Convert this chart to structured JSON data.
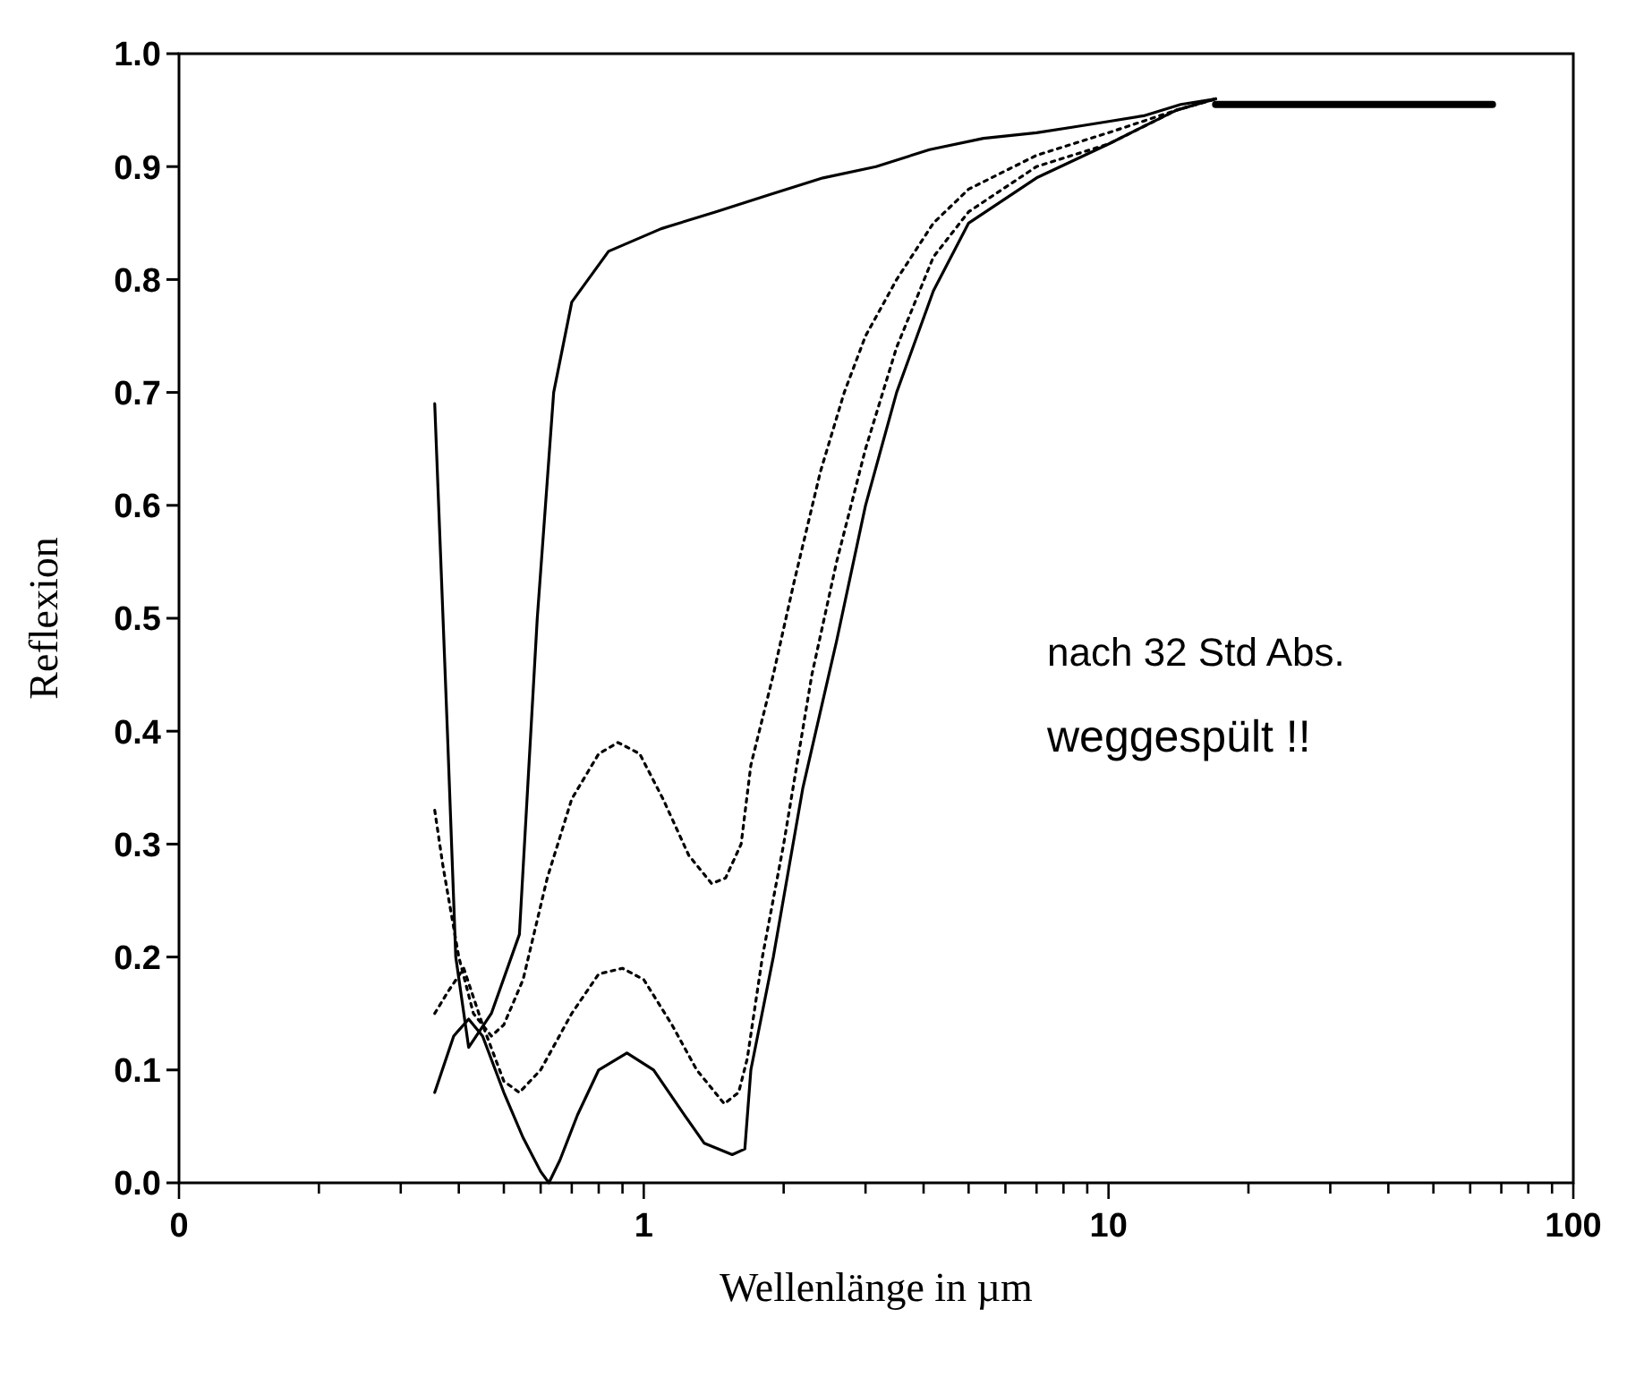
{
  "chart_data": {
    "type": "line",
    "xlabel": "Wellenlänge in µm",
    "ylabel": "Reflexion",
    "log": "x",
    "grid": false,
    "xlim": [
      0.1,
      100
    ],
    "xticks": [
      {
        "value": 0.1,
        "label": "0"
      },
      {
        "value": 0.2,
        "label": null
      },
      {
        "value": 0.3,
        "label": null
      },
      {
        "value": 0.4,
        "label": null
      },
      {
        "value": 0.5,
        "label": null
      },
      {
        "value": 0.6,
        "label": null
      },
      {
        "value": 0.7,
        "label": null
      },
      {
        "value": 0.8,
        "label": null
      },
      {
        "value": 0.9,
        "label": null
      },
      1,
      {
        "value": 2,
        "label": null
      },
      {
        "value": 3,
        "label": null
      },
      {
        "value": 4,
        "label": null
      },
      {
        "value": 5,
        "label": null
      },
      {
        "value": 6,
        "label": null
      },
      {
        "value": 7,
        "label": null
      },
      {
        "value": 8,
        "label": null
      },
      {
        "value": 9,
        "label": null
      },
      10,
      {
        "value": 20,
        "label": null
      },
      {
        "value": 30,
        "label": null
      },
      {
        "value": 40,
        "label": null
      },
      {
        "value": 50,
        "label": null
      },
      {
        "value": 60,
        "label": null
      },
      {
        "value": 70,
        "label": null
      },
      {
        "value": 80,
        "label": null
      },
      {
        "value": 90,
        "label": null
      },
      100
    ],
    "ylim": [
      0,
      1
    ],
    "yticks": [
      {
        "value": 0,
        "label": "0.0"
      },
      0.1,
      0.2,
      0.3,
      0.4,
      0.5,
      0.6,
      0.7,
      0.8,
      0.9,
      {
        "value": 1,
        "label": "1.0"
      }
    ],
    "annotations": [
      "nach 32 Std Abs.",
      "weggespült !!"
    ],
    "series": [
      {
        "color": "#000000",
        "line_style": "solid",
        "x": [
          0.355,
          0.378,
          0.394,
          0.42,
          0.47,
          0.54,
          0.59,
          0.64,
          0.7,
          0.84,
          1.09,
          1.43,
          1.86,
          2.43,
          3.16,
          4.12,
          5.38,
          7.0,
          8.4,
          10,
          11.9,
          14.3,
          17
        ],
        "values": [
          0.69,
          0.4,
          0.2,
          0.12,
          0.15,
          0.22,
          0.5,
          0.7,
          0.78,
          0.825,
          0.845,
          0.86,
          0.875,
          0.89,
          0.9,
          0.915,
          0.925,
          0.93,
          0.935,
          0.94,
          0.945,
          0.955,
          0.96
        ]
      },
      {
        "color": "#000000",
        "line_style": "dotted",
        "x": [
          0.355,
          0.37,
          0.4,
          0.43,
          0.47,
          0.5,
          0.55,
          0.62,
          0.7,
          0.8,
          0.88,
          0.98,
          1.1,
          1.25,
          1.4,
          1.5,
          1.62,
          1.7,
          1.9,
          2.1,
          2.4,
          2.7,
          3.0,
          3.5,
          4.2,
          5,
          7,
          10,
          14,
          17
        ],
        "values": [
          0.33,
          0.28,
          0.2,
          0.15,
          0.13,
          0.14,
          0.18,
          0.27,
          0.34,
          0.38,
          0.39,
          0.38,
          0.34,
          0.29,
          0.265,
          0.27,
          0.3,
          0.37,
          0.45,
          0.53,
          0.63,
          0.7,
          0.75,
          0.8,
          0.85,
          0.88,
          0.91,
          0.93,
          0.95,
          0.96
        ]
      },
      {
        "color": "#000000",
        "line_style": "dotted",
        "x": [
          0.355,
          0.38,
          0.41,
          0.45,
          0.5,
          0.54,
          0.6,
          0.7,
          0.8,
          0.9,
          1.0,
          1.15,
          1.3,
          1.49,
          1.6,
          1.67,
          1.8,
          2.0,
          2.3,
          2.6,
          3.0,
          3.5,
          4.2,
          5,
          7,
          10,
          14,
          17
        ],
        "values": [
          0.15,
          0.17,
          0.19,
          0.14,
          0.09,
          0.08,
          0.1,
          0.15,
          0.185,
          0.19,
          0.18,
          0.14,
          0.1,
          0.07,
          0.08,
          0.11,
          0.2,
          0.3,
          0.45,
          0.55,
          0.65,
          0.74,
          0.82,
          0.86,
          0.9,
          0.92,
          0.95,
          0.96
        ]
      },
      {
        "color": "#000000",
        "line_style": "solid",
        "x": [
          0.355,
          0.39,
          0.42,
          0.45,
          0.5,
          0.55,
          0.6,
          0.625,
          0.66,
          0.72,
          0.8,
          0.92,
          1.05,
          1.2,
          1.35,
          1.55,
          1.65,
          1.7,
          1.9,
          2.2,
          2.6,
          3.0,
          3.5,
          4.2,
          5,
          7,
          10,
          14,
          17
        ],
        "values": [
          0.08,
          0.13,
          0.145,
          0.13,
          0.08,
          0.04,
          0.01,
          0.0,
          0.02,
          0.06,
          0.1,
          0.115,
          0.1,
          0.065,
          0.035,
          0.025,
          0.03,
          0.1,
          0.2,
          0.35,
          0.48,
          0.6,
          0.7,
          0.79,
          0.85,
          0.89,
          0.92,
          0.95,
          0.96
        ]
      },
      {
        "color": "#000000",
        "line_style": "solid",
        "x": [
          17,
          67
        ],
        "values": [
          0.955,
          0.955
        ]
      }
    ]
  }
}
